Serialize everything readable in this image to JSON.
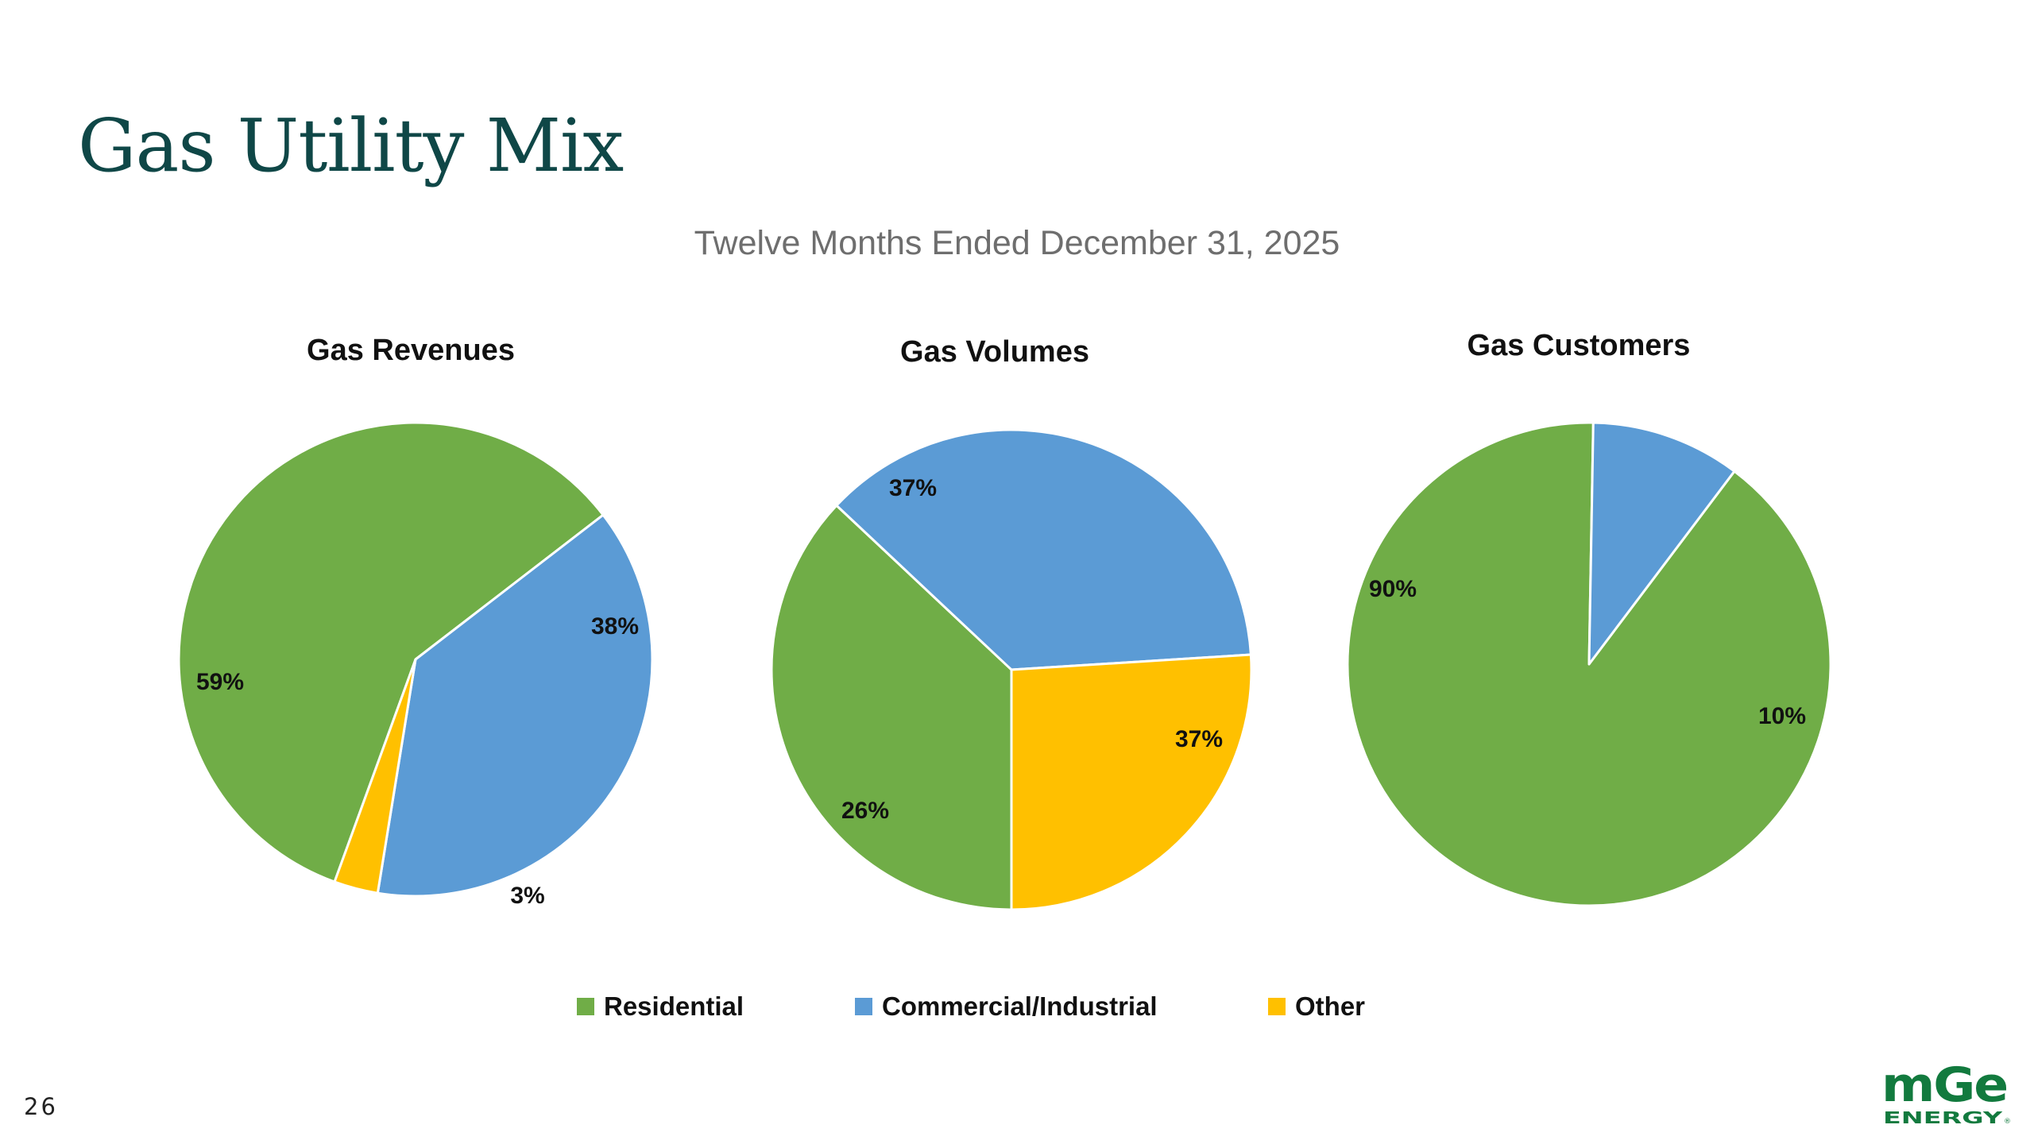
{
  "title": "Gas Utility Mix",
  "subtitle": "Twelve Months Ended December 31, 2025",
  "page_number": "26",
  "logo": {
    "name": "MGE ENERGY"
  },
  "colors": {
    "residential": "#70AD47",
    "commercial": "#5B9BD5",
    "other": "#FFC000"
  },
  "legend": [
    {
      "label": "Residential",
      "color": "#70AD47"
    },
    {
      "label": "Commercial/Industrial",
      "color": "#5B9BD5"
    },
    {
      "label": "Other",
      "color": "#FFC000"
    }
  ],
  "chart_data": [
    {
      "type": "pie",
      "title": "Gas Revenues",
      "slices": [
        {
          "label": "Residential",
          "value": 59,
          "display": "59%"
        },
        {
          "label": "Commercial/Industrial",
          "value": 38,
          "display": "38%"
        },
        {
          "label": "Other",
          "value": 3,
          "display": "3%"
        }
      ]
    },
    {
      "type": "pie",
      "title": "Gas Volumes",
      "slices": [
        {
          "label": "Residential",
          "value": 37,
          "display": "37%"
        },
        {
          "label": "Commercial/Industrial",
          "value": 37,
          "display": "37%"
        },
        {
          "label": "Other",
          "value": 26,
          "display": "26%"
        }
      ]
    },
    {
      "type": "pie",
      "title": "Gas Customers",
      "slices": [
        {
          "label": "Residential",
          "value": 90,
          "display": "90%"
        },
        {
          "label": "Commercial/Industrial",
          "value": 10,
          "display": "10%"
        }
      ]
    }
  ]
}
